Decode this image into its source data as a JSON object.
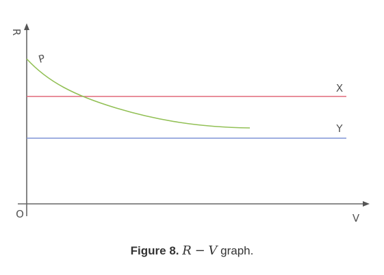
{
  "chart_data": {
    "type": "line",
    "xlabel": "V",
    "ylabel": "R",
    "origin_label": "O",
    "grid": false,
    "legend": "none",
    "series": [
      {
        "name": "X",
        "color": "#e0687a",
        "shape": "constant"
      },
      {
        "name": "Y",
        "color": "#7f93d6",
        "shape": "constant"
      },
      {
        "name": "P",
        "color": "#92c055",
        "shape": "decreasing-curve"
      }
    ]
  },
  "caption": {
    "figure": "Figure 8.",
    "math_left": "R",
    "operator": "−",
    "math_right": "V",
    "suffix": "graph."
  }
}
